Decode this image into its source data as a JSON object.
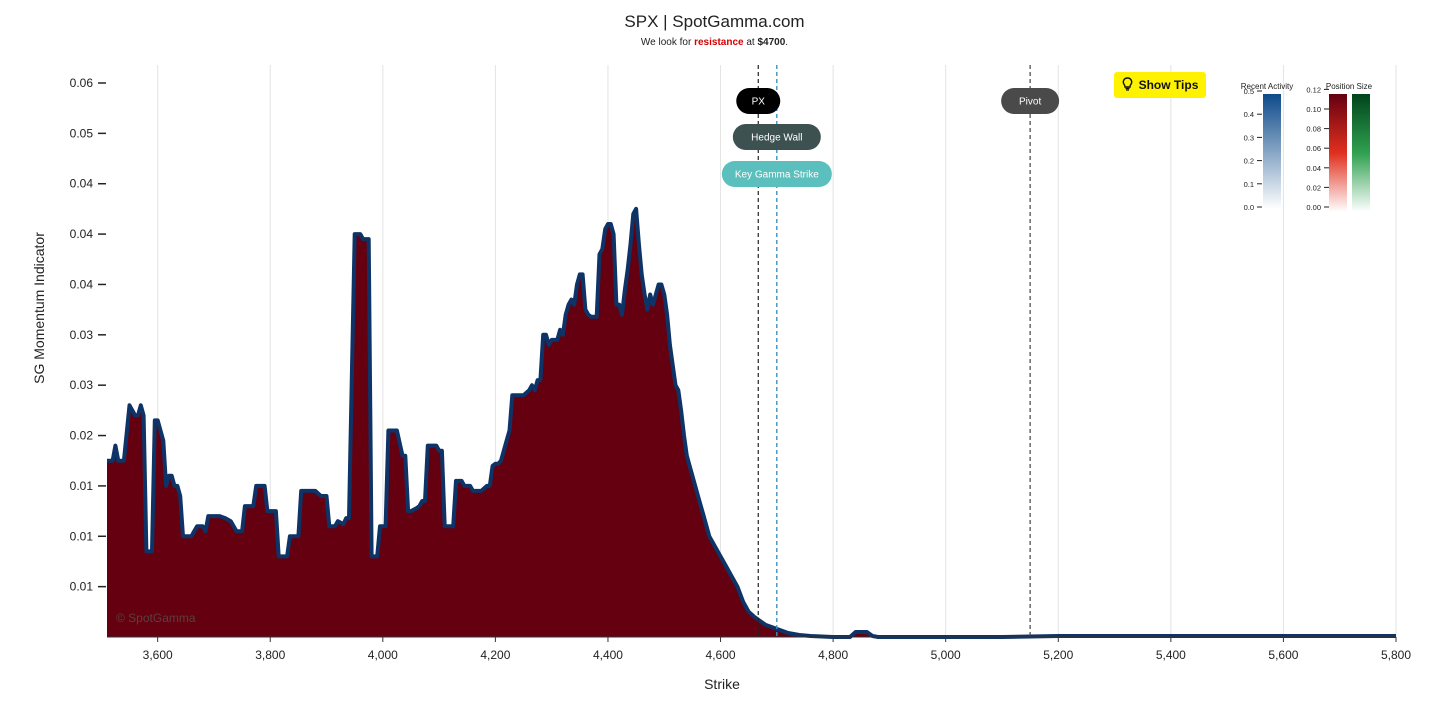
{
  "header": {
    "title": "SPX | SpotGamma.com",
    "subtitle_prefix": "We look for ",
    "subtitle_keyword": "resistance",
    "subtitle_mid": " at ",
    "subtitle_level": "$4700",
    "subtitle_suffix": "."
  },
  "show_tips": {
    "label": "Show Tips",
    "icon": "lightbulb-icon"
  },
  "watermark": "© SpotGamma",
  "colors": {
    "fill": "#650010",
    "outline": "#0e3367",
    "pill_px": "#000000",
    "pill_hedge": "#3d5250",
    "pill_kgs": "#5bbfbd",
    "pill_pivot": "#4a4a4a",
    "tips_bg": "#fff200"
  },
  "chart_data": {
    "type": "area",
    "title": "SPX | SpotGamma.com",
    "xlabel": "Strike",
    "ylabel": "SG Momentum Indicator",
    "xlim": [
      3510,
      5800
    ],
    "ylim": [
      0,
      0.055
    ],
    "x_ticks": [
      {
        "value": 3600,
        "label": "3,600"
      },
      {
        "value": 3800,
        "label": "3,800"
      },
      {
        "value": 4000,
        "label": "4,000"
      },
      {
        "value": 4200,
        "label": "4,200"
      },
      {
        "value": 4400,
        "label": "4,400"
      },
      {
        "value": 4600,
        "label": "4,600"
      },
      {
        "value": 4800,
        "label": "4,800"
      },
      {
        "value": 5000,
        "label": "5,000"
      },
      {
        "value": 5200,
        "label": "5,200"
      },
      {
        "value": 5400,
        "label": "5,400"
      },
      {
        "value": 5600,
        "label": "5,600"
      },
      {
        "value": 5800,
        "label": "5,800"
      }
    ],
    "y_ticks": [
      {
        "value": 0.005,
        "label": "0.01"
      },
      {
        "value": 0.01,
        "label": "0.01"
      },
      {
        "value": 0.015,
        "label": "0.01"
      },
      {
        "value": 0.02,
        "label": "0.02"
      },
      {
        "value": 0.025,
        "label": "0.03"
      },
      {
        "value": 0.03,
        "label": "0.03"
      },
      {
        "value": 0.035,
        "label": "0.04"
      },
      {
        "value": 0.04,
        "label": "0.04"
      },
      {
        "value": 0.045,
        "label": "0.04"
      },
      {
        "value": 0.05,
        "label": "0.05"
      },
      {
        "value": 0.055,
        "label": "0.06"
      }
    ],
    "series": [
      {
        "points": [
          [
            3510,
            0.0175
          ],
          [
            3520,
            0.0175
          ],
          [
            3525,
            0.019
          ],
          [
            3530,
            0.0175
          ],
          [
            3540,
            0.0175
          ],
          [
            3550,
            0.023
          ],
          [
            3560,
            0.022
          ],
          [
            3565,
            0.022
          ],
          [
            3570,
            0.023
          ],
          [
            3575,
            0.022
          ],
          [
            3580,
            0.0085
          ],
          [
            3590,
            0.0085
          ],
          [
            3595,
            0.0215
          ],
          [
            3600,
            0.0215
          ],
          [
            3605,
            0.0205
          ],
          [
            3610,
            0.0195
          ],
          [
            3615,
            0.015
          ],
          [
            3620,
            0.016
          ],
          [
            3625,
            0.016
          ],
          [
            3630,
            0.015
          ],
          [
            3635,
            0.015
          ],
          [
            3640,
            0.014
          ],
          [
            3645,
            0.01
          ],
          [
            3650,
            0.01
          ],
          [
            3660,
            0.01
          ],
          [
            3665,
            0.0105
          ],
          [
            3670,
            0.011
          ],
          [
            3680,
            0.011
          ],
          [
            3685,
            0.0105
          ],
          [
            3690,
            0.012
          ],
          [
            3700,
            0.012
          ],
          [
            3710,
            0.012
          ],
          [
            3720,
            0.0118
          ],
          [
            3730,
            0.0115
          ],
          [
            3740,
            0.0105
          ],
          [
            3750,
            0.0105
          ],
          [
            3755,
            0.013
          ],
          [
            3770,
            0.013
          ],
          [
            3775,
            0.015
          ],
          [
            3790,
            0.015
          ],
          [
            3795,
            0.0125
          ],
          [
            3810,
            0.0125
          ],
          [
            3815,
            0.008
          ],
          [
            3830,
            0.008
          ],
          [
            3835,
            0.01
          ],
          [
            3850,
            0.01
          ],
          [
            3855,
            0.0145
          ],
          [
            3870,
            0.0145
          ],
          [
            3880,
            0.0145
          ],
          [
            3890,
            0.014
          ],
          [
            3900,
            0.014
          ],
          [
            3905,
            0.011
          ],
          [
            3915,
            0.011
          ],
          [
            3920,
            0.0115
          ],
          [
            3930,
            0.0112
          ],
          [
            3935,
            0.0118
          ],
          [
            3940,
            0.0118
          ],
          [
            3950,
            0.04
          ],
          [
            3960,
            0.04
          ],
          [
            3965,
            0.0395
          ],
          [
            3970,
            0.0395
          ],
          [
            3975,
            0.0395
          ],
          [
            3980,
            0.008
          ],
          [
            3990,
            0.008
          ],
          [
            3995,
            0.011
          ],
          [
            4005,
            0.011
          ],
          [
            4010,
            0.0205
          ],
          [
            4025,
            0.0205
          ],
          [
            4035,
            0.018
          ],
          [
            4040,
            0.018
          ],
          [
            4045,
            0.0125
          ],
          [
            4050,
            0.0125
          ],
          [
            4060,
            0.0128
          ],
          [
            4065,
            0.013
          ],
          [
            4070,
            0.0135
          ],
          [
            4075,
            0.0135
          ],
          [
            4080,
            0.019
          ],
          [
            4095,
            0.019
          ],
          [
            4100,
            0.0185
          ],
          [
            4105,
            0.0185
          ],
          [
            4110,
            0.011
          ],
          [
            4125,
            0.011
          ],
          [
            4130,
            0.0155
          ],
          [
            4140,
            0.0155
          ],
          [
            4145,
            0.015
          ],
          [
            4155,
            0.015
          ],
          [
            4160,
            0.0145
          ],
          [
            4175,
            0.0145
          ],
          [
            4185,
            0.015
          ],
          [
            4190,
            0.015
          ],
          [
            4195,
            0.017
          ],
          [
            4200,
            0.0172
          ],
          [
            4205,
            0.0172
          ],
          [
            4210,
            0.0175
          ],
          [
            4220,
            0.0195
          ],
          [
            4225,
            0.0205
          ],
          [
            4230,
            0.024
          ],
          [
            4240,
            0.024
          ],
          [
            4250,
            0.024
          ],
          [
            4260,
            0.0245
          ],
          [
            4265,
            0.025
          ],
          [
            4270,
            0.0245
          ],
          [
            4275,
            0.0255
          ],
          [
            4280,
            0.0255
          ],
          [
            4285,
            0.03
          ],
          [
            4290,
            0.03
          ],
          [
            4295,
            0.029
          ],
          [
            4300,
            0.0295
          ],
          [
            4310,
            0.0295
          ],
          [
            4315,
            0.0305
          ],
          [
            4320,
            0.03
          ],
          [
            4325,
            0.032
          ],
          [
            4330,
            0.033
          ],
          [
            4335,
            0.0335
          ],
          [
            4340,
            0.033
          ],
          [
            4345,
            0.035
          ],
          [
            4350,
            0.036
          ],
          [
            4355,
            0.036
          ],
          [
            4360,
            0.0325
          ],
          [
            4365,
            0.032
          ],
          [
            4370,
            0.0318
          ],
          [
            4380,
            0.0318
          ],
          [
            4385,
            0.038
          ],
          [
            4390,
            0.0385
          ],
          [
            4395,
            0.0405
          ],
          [
            4400,
            0.041
          ],
          [
            4405,
            0.041
          ],
          [
            4410,
            0.04
          ],
          [
            4415,
            0.033
          ],
          [
            4420,
            0.033
          ],
          [
            4425,
            0.032
          ],
          [
            4430,
            0.0345
          ],
          [
            4435,
            0.0365
          ],
          [
            4440,
            0.039
          ],
          [
            4445,
            0.042
          ],
          [
            4450,
            0.0425
          ],
          [
            4455,
            0.039
          ],
          [
            4460,
            0.036
          ],
          [
            4465,
            0.034
          ],
          [
            4470,
            0.0325
          ],
          [
            4475,
            0.034
          ],
          [
            4480,
            0.033
          ],
          [
            4485,
            0.034
          ],
          [
            4490,
            0.035
          ],
          [
            4495,
            0.035
          ],
          [
            4500,
            0.034
          ],
          [
            4505,
            0.032
          ],
          [
            4510,
            0.029
          ],
          [
            4515,
            0.027
          ],
          [
            4520,
            0.025
          ],
          [
            4525,
            0.0245
          ],
          [
            4530,
            0.0225
          ],
          [
            4535,
            0.02
          ],
          [
            4540,
            0.018
          ],
          [
            4545,
            0.017
          ],
          [
            4550,
            0.016
          ],
          [
            4555,
            0.015
          ],
          [
            4560,
            0.014
          ],
          [
            4570,
            0.012
          ],
          [
            4580,
            0.01
          ],
          [
            4590,
            0.009
          ],
          [
            4600,
            0.008
          ],
          [
            4610,
            0.007
          ],
          [
            4620,
            0.006
          ],
          [
            4630,
            0.005
          ],
          [
            4640,
            0.0035
          ],
          [
            4650,
            0.0025
          ],
          [
            4660,
            0.002
          ],
          [
            4680,
            0.0012
          ],
          [
            4700,
            0.0008
          ],
          [
            4720,
            0.0004
          ],
          [
            4740,
            0.0002
          ],
          [
            4760,
            0.0001
          ],
          [
            4800,
            0.0
          ],
          [
            4830,
            0.0
          ],
          [
            4840,
            0.0005
          ],
          [
            4860,
            0.0005
          ],
          [
            4870,
            0.0001
          ],
          [
            4880,
            0.0
          ],
          [
            4900,
            0.0
          ],
          [
            5000,
            0.0
          ],
          [
            5060,
            0.0
          ],
          [
            5100,
            0.0
          ],
          [
            5200,
            0.0001
          ],
          [
            5300,
            0.0001
          ],
          [
            5400,
            0.0001
          ],
          [
            5500,
            0.0001
          ],
          [
            5600,
            0.0001
          ],
          [
            5700,
            0.0001
          ],
          [
            5800,
            0.0001
          ]
        ]
      }
    ],
    "markers": [
      {
        "label": "PX",
        "value": 4667,
        "line_color": "#222222",
        "pill_color": "#000000",
        "row": 0
      },
      {
        "label": "Hedge Wall",
        "value": 4700,
        "line_color": "#3a93c0",
        "pill_color": "#3d5250",
        "row": 1
      },
      {
        "label": "Key Gamma Strike",
        "value": 4700,
        "line_color": "#3a93c0",
        "pill_color": "#5bbfbd",
        "row": 2
      },
      {
        "label": "Pivot",
        "value": 5150,
        "line_color": "#444444",
        "pill_color": "#4a4a4a",
        "row": 0
      }
    ],
    "legends": [
      {
        "title": "Recent Activity",
        "ticks": [
          "0.0",
          "0.1",
          "0.2",
          "0.3",
          "0.4",
          "0.5"
        ],
        "colors": [
          "#ffffff",
          "#0d4a8a"
        ]
      },
      {
        "title": "Position Size",
        "ticks": [
          "0.00",
          "0.02",
          "0.04",
          "0.06",
          "0.08",
          "0.10",
          "0.12"
        ],
        "colors_red": [
          "#ffffff",
          "#e0301e",
          "#650010"
        ],
        "colors_green": [
          "#ffffff",
          "#30a050",
          "#00441b"
        ]
      }
    ],
    "grid": "vertical"
  }
}
